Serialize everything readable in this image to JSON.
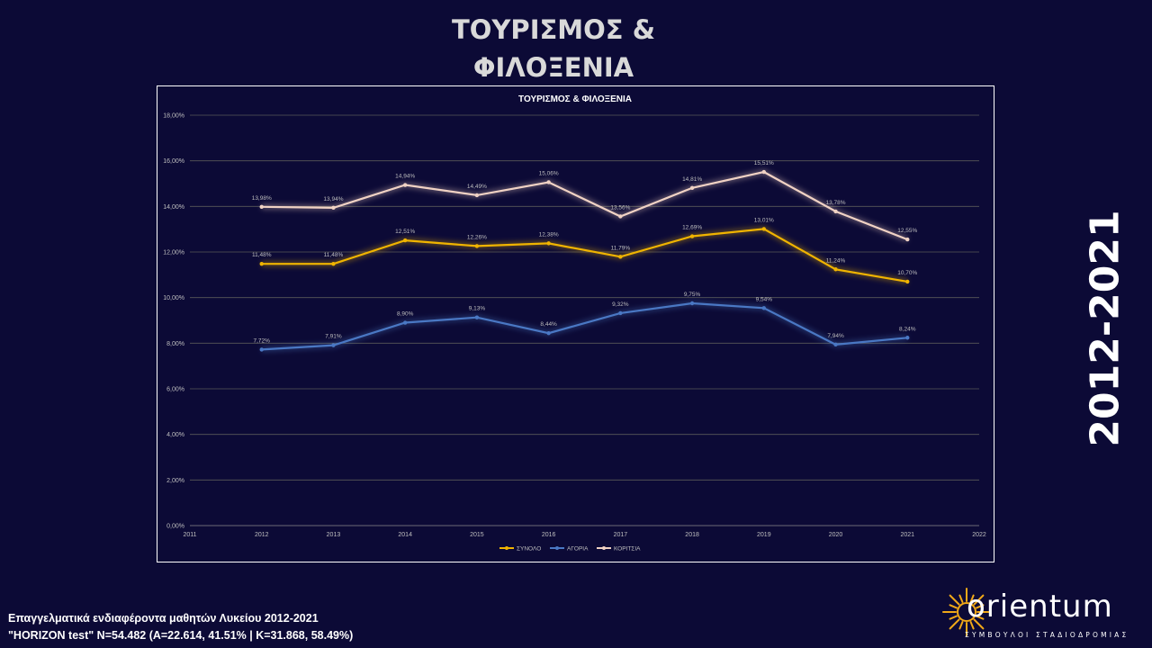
{
  "slide": {
    "title_line1": "ΤΟΥΡΙΣΜΟΣ &",
    "title_line2": "ΦΙΛΟΞΕΝΙΑ",
    "year_range": "2012-2021",
    "footer_line1": "Επαγγελματικά ενδιαφέροντα μαθητών Λυκείου 2012-2021",
    "footer_line2": "\"HORIZON test\" N=54.482 (A=22.614, 41.51% | K=31.868, 58.49%)"
  },
  "logo": {
    "word": "orientum",
    "tagline": "ΣΥΜΒΟΥΛΟΙ ΣΤΑΔΙΟΔΡΟΜΙΑΣ",
    "color": "#f0a818"
  },
  "chart_data": {
    "type": "line",
    "title": "ΤΟΥΡΙΣΜΟΣ  & ΦΙΛΟΞΕΝΙΑ",
    "x": [
      2012,
      2013,
      2014,
      2015,
      2016,
      2017,
      2018,
      2019,
      2020,
      2021
    ],
    "xlim": [
      2011,
      2022
    ],
    "x_ticks": [
      "2011",
      "2012",
      "2013",
      "2014",
      "2015",
      "2016",
      "2017",
      "2018",
      "2019",
      "2020",
      "2021",
      "2022"
    ],
    "ylim": [
      0,
      18
    ],
    "y_ticks": [
      "0,00%",
      "2,00%",
      "4,00%",
      "6,00%",
      "8,00%",
      "10,00%",
      "12,00%",
      "14,00%",
      "16,00%",
      "18,00%"
    ],
    "grid": true,
    "legend_position": "bottom",
    "series": [
      {
        "name": "ΣΥΝΟΛΟ",
        "color": "#f0b400",
        "values": [
          11.48,
          11.48,
          12.51,
          12.26,
          12.38,
          11.79,
          12.69,
          13.01,
          11.24,
          10.7
        ],
        "labels": [
          "11,48%",
          "11,48%",
          "12,51%",
          "12,26%",
          "12,38%",
          "11,79%",
          "12,69%",
          "13,01%",
          "11,24%",
          "10,70%"
        ]
      },
      {
        "name": "ΑΓΟΡΙΑ",
        "color": "#4a78c4",
        "values": [
          7.72,
          7.91,
          8.9,
          9.13,
          8.44,
          9.32,
          9.75,
          9.54,
          7.94,
          8.24
        ],
        "labels": [
          "7,72%",
          "7,91%",
          "8,90%",
          "9,13%",
          "8,44%",
          "9,32%",
          "9,75%",
          "9,54%",
          "7,94%",
          "8,24%"
        ]
      },
      {
        "name": "ΚΟΡΙΤΣΙΑ",
        "color": "#f0d2c4",
        "values": [
          13.98,
          13.94,
          14.94,
          14.49,
          15.06,
          13.56,
          14.81,
          15.51,
          13.78,
          12.55
        ],
        "labels": [
          "13,98%",
          "13,94%",
          "14,94%",
          "14,49%",
          "15,06%",
          "13,56%",
          "14,81%",
          "15,51%",
          "13,78%",
          "12,55%"
        ]
      }
    ]
  }
}
